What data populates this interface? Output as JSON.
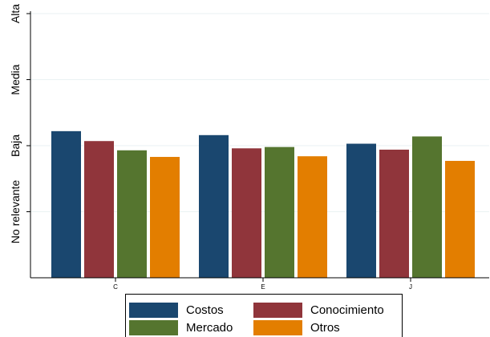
{
  "chart_data": {
    "type": "bar",
    "categories": [
      "C",
      "E",
      "J"
    ],
    "series": [
      {
        "name": "Costos",
        "color": "#1a476f",
        "values": [
          2.22,
          2.16,
          2.03
        ]
      },
      {
        "name": "Conocimiento",
        "color": "#90353b",
        "values": [
          2.07,
          1.96,
          1.94
        ]
      },
      {
        "name": "Mercado",
        "color": "#55752f",
        "values": [
          1.93,
          1.98,
          2.14
        ]
      },
      {
        "name": "Otros",
        "color": "#e37e00",
        "values": [
          1.83,
          1.84,
          1.77
        ]
      }
    ],
    "ylim": [
      0,
      4
    ],
    "yticks": [
      {
        "value": 1,
        "label": "No relevante"
      },
      {
        "value": 2,
        "label": "Baja"
      },
      {
        "value": 3,
        "label": "Media"
      },
      {
        "value": 4,
        "label": "Alta"
      }
    ],
    "grid": true,
    "legend_position": "bottom",
    "xlabel": "",
    "ylabel": ""
  },
  "legend": [
    {
      "label": "Costos",
      "color": "#1a476f"
    },
    {
      "label": "Conocimiento",
      "color": "#90353b"
    },
    {
      "label": "Mercado",
      "color": "#55752f"
    },
    {
      "label": "Otros",
      "color": "#e37e00"
    }
  ]
}
